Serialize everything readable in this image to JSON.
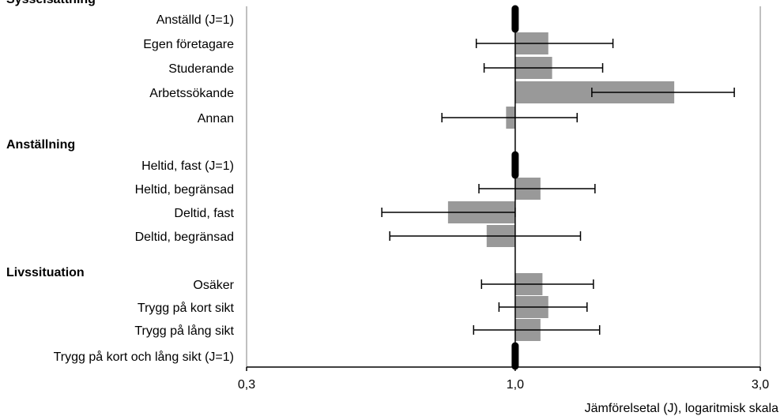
{
  "chart_data": {
    "type": "bar",
    "title": "",
    "xlabel": "Jämförelsetal (J), logaritmisk skala",
    "ylabel": "",
    "x_scale": "log",
    "xlim": [
      0.3,
      3.0
    ],
    "x_ticks": [
      {
        "value": 0.3,
        "label": "0,3"
      },
      {
        "value": 1.0,
        "label": "1,0"
      },
      {
        "value": 3.0,
        "label": "3,0"
      }
    ],
    "colors": {
      "bar": "#999999",
      "reference": "#000000",
      "axis": "#000000",
      "gridline": "#808080"
    },
    "groups": [
      {
        "name": "Sysselsättning",
        "items": [
          {
            "label": "Anställd (J=1)",
            "value": 1.0,
            "reference": true
          },
          {
            "label": "Egen företagare",
            "value": 1.16,
            "ci": [
              0.84,
              1.55
            ]
          },
          {
            "label": "Studerande",
            "value": 1.18,
            "ci": [
              0.87,
              1.48
            ]
          },
          {
            "label": "Arbetssökande",
            "value": 2.04,
            "ci": [
              1.41,
              2.67
            ]
          },
          {
            "label": "Annan",
            "value": 0.96,
            "ci": [
              0.72,
              1.32
            ]
          }
        ]
      },
      {
        "name": "Anställning",
        "items": [
          {
            "label": "Heltid, fast (J=1)",
            "value": 1.0,
            "reference": true
          },
          {
            "label": "Heltid, begränsad",
            "value": 1.12,
            "ci": [
              0.85,
              1.43
            ]
          },
          {
            "label": "Deltid, fast",
            "value": 0.74,
            "ci": [
              0.55,
              1.0
            ]
          },
          {
            "label": "Deltid, begränsad",
            "value": 0.88,
            "ci": [
              0.57,
              1.34
            ]
          }
        ]
      },
      {
        "name": "Livssituation",
        "items": [
          {
            "label": "Osäker",
            "value": 1.13,
            "ci": [
              0.86,
              1.42
            ]
          },
          {
            "label": "Trygg på kort sikt",
            "value": 1.16,
            "ci": [
              0.93,
              1.38
            ]
          },
          {
            "label": "Trygg på lång sikt",
            "value": 1.12,
            "ci": [
              0.83,
              1.46
            ]
          },
          {
            "label": "Trygg på kort och lång sikt (J=1)",
            "value": 1.0,
            "reference": true
          }
        ]
      }
    ]
  }
}
